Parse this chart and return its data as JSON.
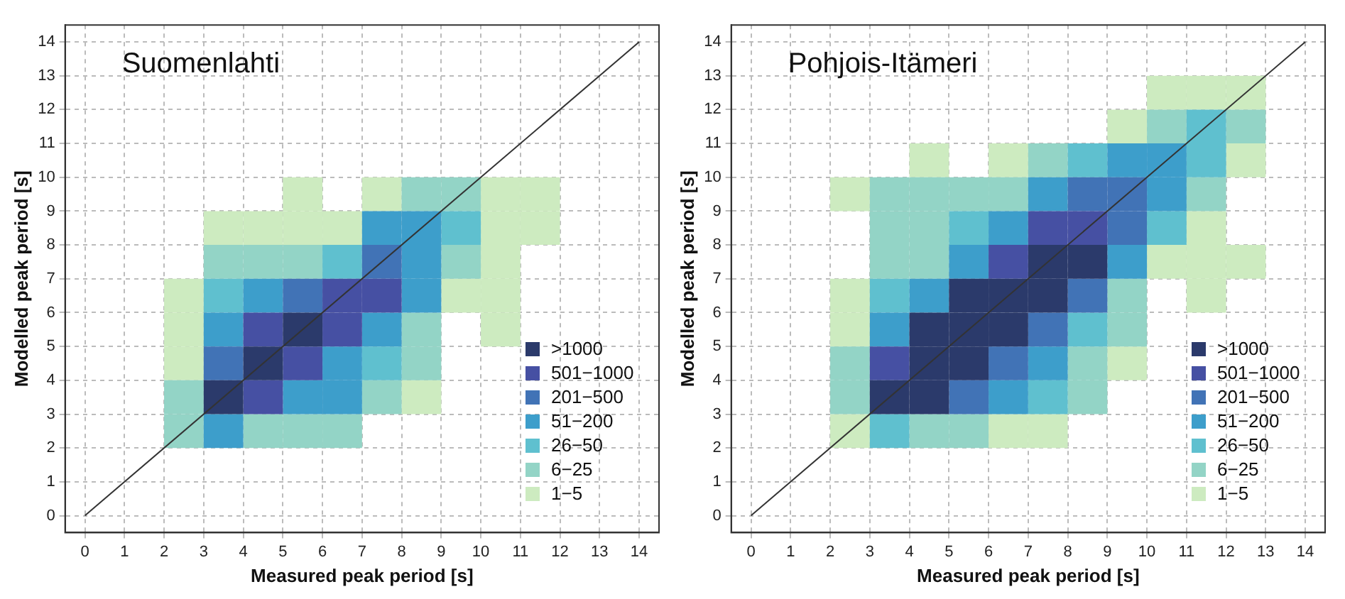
{
  "chart_data": [
    {
      "type": "scatter",
      "title": "Suomenlahti",
      "xlabel": "Measured peak period [s]",
      "ylabel": "Modelled peak period [s]",
      "marker": "square",
      "series": [
        {
          "name": ">1000",
          "color": "#2b3a6b",
          "x": [
            5.5,
            4.5,
            3.5
          ],
          "values": [
            5.5,
            4.5,
            3.5
          ]
        },
        {
          "name": "501−1000",
          "color": "#4650a3",
          "x": [
            6.5,
            7.5,
            4.5,
            6.5,
            5.5,
            4.5
          ],
          "values": [
            6.5,
            6.5,
            5.5,
            5.5,
            4.5,
            3.5
          ]
        },
        {
          "name": "201−500",
          "color": "#4173b6",
          "x": [
            7.5,
            5.5,
            3.5
          ],
          "values": [
            7.5,
            6.5,
            4.5
          ]
        },
        {
          "name": "51−200",
          "color": "#3d9ecb",
          "x": [
            7.5,
            8.5,
            8.5,
            4.5,
            8.5,
            3.5,
            7.5,
            6.5,
            5.5,
            6.5,
            3.5
          ],
          "values": [
            8.5,
            8.5,
            7.5,
            6.5,
            6.5,
            5.5,
            5.5,
            4.5,
            3.5,
            3.5,
            2.5
          ]
        },
        {
          "name": "26−50",
          "color": "#5fc0cf",
          "x": [
            9.5,
            6.5,
            3.5,
            7.5
          ],
          "values": [
            8.5,
            7.5,
            6.5,
            4.5
          ]
        },
        {
          "name": "6−25",
          "color": "#93d4c6",
          "x": [
            8.5,
            9.5,
            3.5,
            4.5,
            5.5,
            9.5,
            8.5,
            8.5,
            2.5,
            7.5,
            2.5,
            4.5,
            5.5,
            6.5
          ],
          "values": [
            9.5,
            9.5,
            7.5,
            7.5,
            7.5,
            7.5,
            5.5,
            4.5,
            3.5,
            3.5,
            2.5,
            2.5,
            2.5,
            2.5
          ]
        },
        {
          "name": "1−5",
          "color": "#cdebc0",
          "x": [
            5.5,
            7.5,
            10.5,
            11.5,
            3.5,
            4.5,
            5.5,
            6.5,
            10.5,
            11.5,
            10.5,
            2.5,
            9.5,
            10.5,
            2.5,
            10.5,
            2.5,
            8.5
          ],
          "values": [
            9.5,
            9.5,
            9.5,
            9.5,
            8.5,
            8.5,
            8.5,
            8.5,
            8.5,
            8.5,
            7.5,
            6.5,
            6.5,
            6.5,
            5.5,
            5.5,
            4.5,
            3.5
          ]
        },
        {
          "type": "line",
          "color": "#333333",
          "marker": "none",
          "x": [
            0,
            14
          ],
          "values": [
            0,
            14
          ]
        }
      ],
      "xlim": [
        -0.5,
        14.5
      ],
      "ylim": [
        -0.5,
        14.5
      ],
      "xticks": [
        0,
        1,
        2,
        3,
        4,
        5,
        6,
        7,
        8,
        9,
        10,
        11,
        12,
        13,
        14
      ],
      "yticks": [
        0,
        1,
        2,
        3,
        4,
        5,
        6,
        7,
        8,
        9,
        10,
        11,
        12,
        13,
        14
      ],
      "grid": true,
      "legend": "bottom right"
    },
    {
      "type": "scatter",
      "title": "Pohjois-Itämeri",
      "xlabel": "Measured peak period [s]",
      "ylabel": "Modelled peak period [s]",
      "marker": "square",
      "series": [
        {
          "name": ">1000",
          "color": "#2b3a6b",
          "x": [
            7.5,
            8.5,
            5.5,
            6.5,
            7.5,
            4.5,
            5.5,
            6.5,
            4.5,
            5.5,
            3.5,
            4.5
          ],
          "values": [
            7.5,
            7.5,
            6.5,
            6.5,
            6.5,
            5.5,
            5.5,
            5.5,
            4.5,
            4.5,
            3.5,
            3.5
          ]
        },
        {
          "name": "501−1000",
          "color": "#4650a3",
          "x": [
            7.5,
            8.5,
            6.5,
            3.5
          ],
          "values": [
            8.5,
            8.5,
            7.5,
            4.5
          ]
        },
        {
          "name": "201−500",
          "color": "#4173b6",
          "x": [
            8.5,
            9.5,
            9.5,
            8.5,
            7.5,
            6.5,
            5.5
          ],
          "values": [
            9.5,
            9.5,
            8.5,
            6.5,
            5.5,
            4.5,
            3.5
          ]
        },
        {
          "name": "51−200",
          "color": "#3d9ecb",
          "x": [
            9.5,
            10.5,
            7.5,
            10.5,
            6.5,
            5.5,
            9.5,
            4.5,
            3.5,
            7.5,
            6.5
          ],
          "values": [
            10.5,
            10.5,
            9.5,
            9.5,
            8.5,
            7.5,
            7.5,
            6.5,
            5.5,
            4.5,
            3.5
          ]
        },
        {
          "name": "26−50",
          "color": "#5fc0cf",
          "x": [
            11.5,
            8.5,
            11.5,
            5.5,
            10.5,
            3.5,
            8.5,
            7.5,
            3.5
          ],
          "values": [
            11.5,
            10.5,
            10.5,
            8.5,
            8.5,
            6.5,
            5.5,
            3.5,
            2.5
          ]
        },
        {
          "name": "6−25",
          "color": "#93d4c6",
          "x": [
            10.5,
            12.5,
            7.5,
            3.5,
            4.5,
            5.5,
            6.5,
            11.5,
            3.5,
            4.5,
            3.5,
            4.5,
            9.5,
            9.5,
            2.5,
            8.5,
            2.5,
            8.5,
            4.5,
            5.5
          ],
          "values": [
            11.5,
            11.5,
            10.5,
            9.5,
            9.5,
            9.5,
            9.5,
            9.5,
            8.5,
            8.5,
            7.5,
            7.5,
            6.5,
            5.5,
            4.5,
            4.5,
            3.5,
            3.5,
            2.5,
            2.5
          ]
        },
        {
          "name": "1−5",
          "color": "#cdebc0",
          "x": [
            10.5,
            11.5,
            12.5,
            9.5,
            4.5,
            6.5,
            12.5,
            2.5,
            11.5,
            10.5,
            11.5,
            12.5,
            2.5,
            11.5,
            2.5,
            9.5,
            2.5,
            6.5,
            7.5
          ],
          "values": [
            12.5,
            12.5,
            12.5,
            11.5,
            10.5,
            10.5,
            10.5,
            9.5,
            8.5,
            7.5,
            7.5,
            7.5,
            6.5,
            6.5,
            5.5,
            4.5,
            2.5,
            2.5,
            2.5
          ]
        },
        {
          "type": "line",
          "color": "#333333",
          "marker": "none",
          "x": [
            0,
            14
          ],
          "values": [
            0,
            14
          ]
        }
      ],
      "xlim": [
        -0.5,
        14.5
      ],
      "ylim": [
        -0.5,
        14.5
      ],
      "xticks": [
        0,
        1,
        2,
        3,
        4,
        5,
        6,
        7,
        8,
        9,
        10,
        11,
        12,
        13,
        14
      ],
      "yticks": [
        0,
        1,
        2,
        3,
        4,
        5,
        6,
        7,
        8,
        9,
        10,
        11,
        12,
        13,
        14
      ],
      "grid": true,
      "legend": "bottom right"
    }
  ]
}
